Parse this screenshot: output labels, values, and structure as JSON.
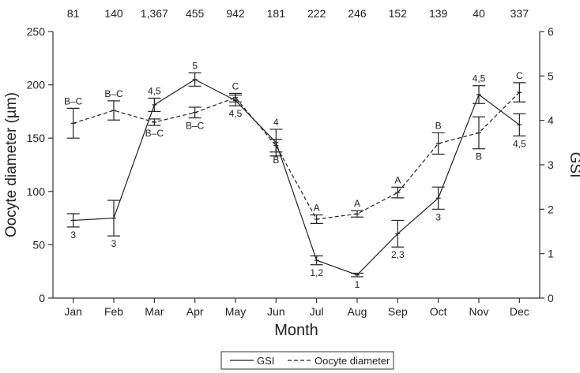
{
  "chart_data": {
    "type": "line",
    "title": "",
    "xlabel": "Month",
    "ylabel_left": "Oocyte diameter (µm)",
    "ylabel_right": "GSI",
    "categories": [
      "Jan",
      "Feb",
      "Mar",
      "Apr",
      "May",
      "Jun",
      "Jul",
      "Aug",
      "Sep",
      "Oct",
      "Nov",
      "Dec"
    ],
    "top_labels": [
      "81",
      "140",
      "1,367",
      "455",
      "942",
      "181",
      "222",
      "246",
      "152",
      "139",
      "40",
      "337"
    ],
    "ylim_left": [
      0,
      250
    ],
    "yticks_left": [
      "0",
      "50",
      "100",
      "150",
      "200",
      "250"
    ],
    "ylim_right": [
      0,
      6
    ],
    "yticks_right": [
      "0",
      "1",
      "2",
      "3",
      "4",
      "5",
      "6"
    ],
    "series": [
      {
        "name": "GSI",
        "axis": "right",
        "style": "solid",
        "values": [
          1.75,
          1.8,
          4.35,
          4.92,
          4.45,
          3.5,
          0.85,
          0.52,
          1.45,
          2.25,
          4.58,
          3.9
        ],
        "errors": [
          0.15,
          0.4,
          0.15,
          0.15,
          0.12,
          0.3,
          0.1,
          0.04,
          0.3,
          0.25,
          0.2,
          0.25
        ],
        "labels": [
          "3",
          "3",
          "4,5",
          "5",
          "4,5",
          "4",
          "1,2",
          "1",
          "2,3",
          "3",
          "4,5",
          "4,5"
        ]
      },
      {
        "name": "Oocyte diameter",
        "axis": "left",
        "style": "dashed",
        "values": [
          164,
          176,
          165,
          174,
          188,
          143,
          74,
          79,
          99,
          145,
          155,
          193
        ],
        "errors": [
          14,
          9,
          3,
          5,
          4,
          6,
          4,
          3,
          5,
          10,
          15,
          9
        ],
        "labels": [
          "B–C",
          "B–C",
          "B–C",
          "B–C",
          "C",
          "B",
          "A",
          "A",
          "A",
          "B",
          "B",
          "C"
        ]
      }
    ],
    "legend": {
      "position": "bottom-center",
      "entries": [
        "GSI",
        "Oocyte diameter"
      ]
    }
  }
}
